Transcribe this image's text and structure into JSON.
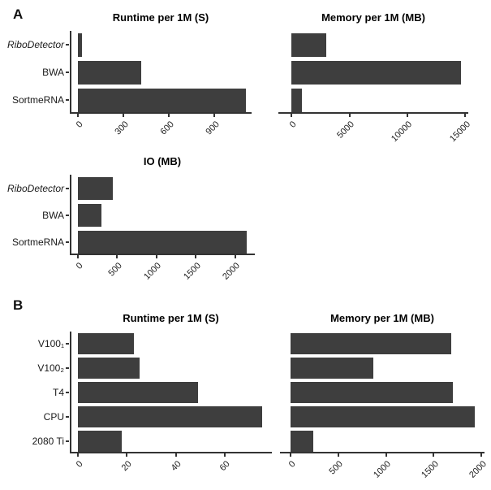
{
  "figure": {
    "background": "#ffffff",
    "bar_color": "#3e3e3e",
    "axis_color": "#333333",
    "panel_a_label": "A",
    "panel_b_label": "B"
  },
  "chart_data": [
    {
      "id": "panel-a-runtime",
      "type": "bar",
      "orientation": "horizontal",
      "title": "Runtime per 1M (S)",
      "categories": [
        "RiboDetector",
        "BWA",
        "SortmeRNA"
      ],
      "italic_categories": [
        true,
        false,
        false
      ],
      "show_category_labels": true,
      "show_y_axis": true,
      "values": [
        25,
        420,
        1110
      ],
      "xticks": [
        0,
        300,
        600,
        900
      ],
      "xlim": [
        0,
        1120
      ],
      "grid": false,
      "legend": "none"
    },
    {
      "id": "panel-a-memory",
      "type": "bar",
      "orientation": "horizontal",
      "title": "Memory per 1M (MB)",
      "categories": [
        "RiboDetector",
        "BWA",
        "SortmeRNA"
      ],
      "italic_categories": [
        true,
        false,
        false
      ],
      "show_category_labels": false,
      "show_y_axis": false,
      "values": [
        3000,
        14600,
        900
      ],
      "xticks": [
        0,
        5000,
        10000,
        15000
      ],
      "xlim": [
        0,
        14900
      ],
      "grid": false,
      "legend": "none"
    },
    {
      "id": "panel-a-io",
      "type": "bar",
      "orientation": "horizontal",
      "title": "IO (MB)",
      "categories": [
        "RiboDetector",
        "BWA",
        "SortmeRNA"
      ],
      "italic_categories": [
        true,
        false,
        false
      ],
      "show_category_labels": true,
      "show_y_axis": true,
      "values": [
        440,
        300,
        2150
      ],
      "xticks": [
        0,
        500,
        1000,
        1500,
        2000
      ],
      "xlim": [
        0,
        2200
      ],
      "grid": false,
      "legend": "none"
    },
    {
      "id": "panel-b-runtime",
      "type": "bar",
      "orientation": "horizontal",
      "title": "Runtime per 1M (S)",
      "categories": [
        "V100₁",
        "V100₂",
        "T4",
        "CPU",
        "2080 Ti"
      ],
      "italic_categories": [
        false,
        false,
        false,
        false,
        false
      ],
      "show_category_labels": true,
      "show_y_axis": true,
      "values": [
        23,
        25,
        49,
        75,
        18
      ],
      "xticks": [
        0,
        20,
        40,
        60
      ],
      "xlim": [
        0,
        77.5
      ],
      "grid": false,
      "legend": "none"
    },
    {
      "id": "panel-b-memory",
      "type": "bar",
      "orientation": "horizontal",
      "title": "Memory per 1M (MB)",
      "categories": [
        "V100₁",
        "V100₂",
        "T4",
        "CPU",
        "2080 Ti"
      ],
      "italic_categories": [
        false,
        false,
        false,
        false,
        false
      ],
      "show_category_labels": false,
      "show_y_axis": false,
      "values": [
        1680,
        870,
        1700,
        1930,
        240
      ],
      "xticks": [
        0,
        500,
        1000,
        1500,
        2000
      ],
      "xlim": [
        0,
        1990
      ],
      "grid": false,
      "legend": "none"
    }
  ]
}
